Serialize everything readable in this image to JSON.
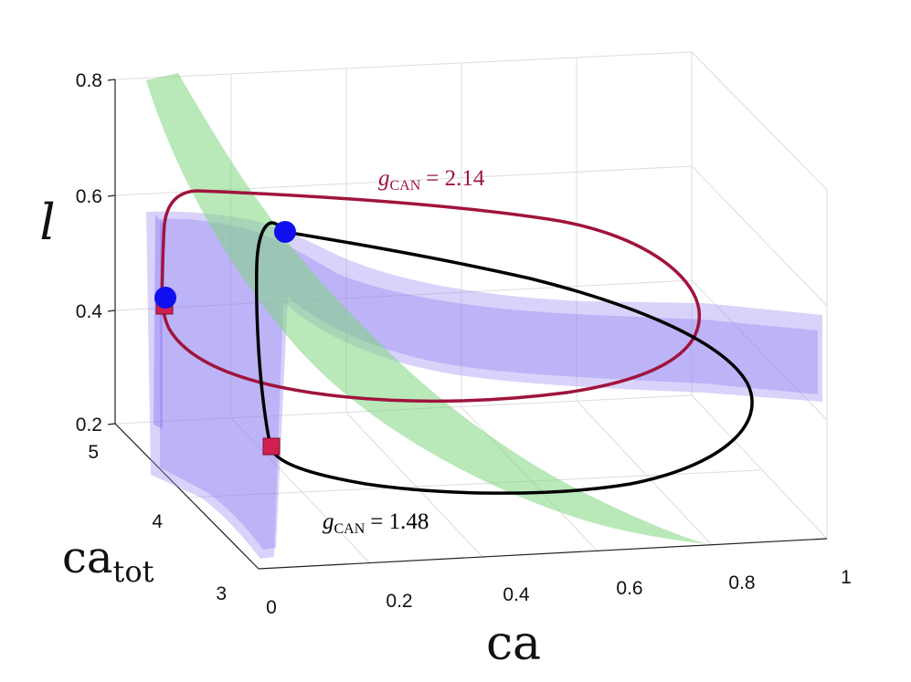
{
  "chart_data": {
    "type": "3d-line-surface",
    "axes": {
      "x": {
        "label": "ca",
        "range": [
          0,
          1
        ],
        "ticks": [
          "0",
          "0.2",
          "0.4",
          "0.6",
          "0.8",
          "1"
        ]
      },
      "y": {
        "label_main": "ca",
        "label_sub": "tot",
        "range": [
          3,
          5
        ],
        "ticks": [
          "3",
          "4",
          "5"
        ]
      },
      "z": {
        "label": "l",
        "range": [
          0.2,
          0.8
        ],
        "ticks": [
          "0.2",
          "0.4",
          "0.6",
          "0.8"
        ]
      }
    },
    "grid": true,
    "surfaces": [
      {
        "name": "purple-surface",
        "color": "#9b8cf5"
      },
      {
        "name": "green-surface",
        "color": "#7fd67f"
      }
    ],
    "series": [
      {
        "name": "red-trajectory",
        "color": "#a0143c",
        "label": "g_CAN = 2.14",
        "label_sym": "g",
        "label_sub": "CAN",
        "label_val": "= 2.14"
      },
      {
        "name": "black-trajectory",
        "color": "#000000",
        "label": "g_CAN = 1.48",
        "label_sym": "g",
        "label_sub": "CAN",
        "label_val": "= 1.48"
      }
    ],
    "markers": [
      {
        "shape": "circle",
        "color": "#1010ee",
        "on": "red-trajectory"
      },
      {
        "shape": "square",
        "color": "#d02050",
        "on": "red-trajectory"
      },
      {
        "shape": "circle",
        "color": "#1010ee",
        "on": "black-trajectory"
      },
      {
        "shape": "square",
        "color": "#d02050",
        "on": "black-trajectory"
      }
    ]
  }
}
